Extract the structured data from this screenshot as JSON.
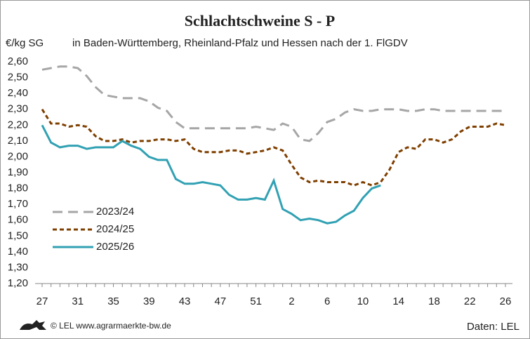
{
  "chart_data": {
    "type": "line",
    "title": "Schlachtschweine S - P",
    "subtitle": "in Baden-Württemberg, Rheinland-Pfalz und Hessen nach der 1. FlGDV",
    "y_label": "€/kg SG",
    "source_left": "© LEL www.agrarmaerkte-bw.de",
    "source_right": "Daten: LEL",
    "categories": [
      "27",
      null,
      null,
      null,
      "31",
      null,
      null,
      null,
      "35",
      null,
      null,
      null,
      "39",
      null,
      null,
      null,
      "43",
      null,
      null,
      null,
      "47",
      null,
      null,
      null,
      "51",
      null,
      null,
      null,
      "2",
      null,
      null,
      null,
      "6",
      null,
      null,
      null,
      "10",
      null,
      null,
      null,
      "14",
      null,
      null,
      null,
      "18",
      null,
      null,
      null,
      "22",
      null,
      null,
      null,
      "26"
    ],
    "ylim": [
      1.2,
      2.6
    ],
    "yticks": [
      {
        "value": 1.2,
        "label": "1,20"
      },
      {
        "value": 1.3,
        "label": "1,30"
      },
      {
        "value": 1.4,
        "label": "1,40"
      },
      {
        "value": 1.5,
        "label": "1,50"
      },
      {
        "value": 1.6,
        "label": "1,60"
      },
      {
        "value": 1.7,
        "label": "1,70"
      },
      {
        "value": 1.8,
        "label": "1,80"
      },
      {
        "value": 1.9,
        "label": "1,90"
      },
      {
        "value": 2.0,
        "label": "2,00"
      },
      {
        "value": 2.1,
        "label": "2,10"
      },
      {
        "value": 2.2,
        "label": "2,20"
      },
      {
        "value": 2.3,
        "label": "2,30"
      },
      {
        "value": 2.4,
        "label": "2,40"
      },
      {
        "value": 2.5,
        "label": "2,50"
      },
      {
        "value": 2.6,
        "label": "2,60"
      }
    ],
    "grid": false,
    "legend": "left",
    "series": [
      {
        "name": "2023/24",
        "color": "#a6a6a6",
        "dash": "dashed",
        "values": [
          2.55,
          2.56,
          2.57,
          2.57,
          2.56,
          2.51,
          2.44,
          2.39,
          2.38,
          2.37,
          2.37,
          2.37,
          2.35,
          2.31,
          2.29,
          2.22,
          2.18,
          2.18,
          2.18,
          2.18,
          2.18,
          2.18,
          2.18,
          2.18,
          2.19,
          2.18,
          2.17,
          2.21,
          2.19,
          2.11,
          2.1,
          2.15,
          2.22,
          2.24,
          2.28,
          2.3,
          2.29,
          2.29,
          2.3,
          2.3,
          2.3,
          2.29,
          2.29,
          2.3,
          2.3,
          2.29,
          2.29,
          2.29,
          2.29,
          2.29,
          2.29,
          2.29,
          2.29
        ]
      },
      {
        "name": "2024/25",
        "color": "#7f3f00",
        "dash": "dotted",
        "values": [
          2.3,
          2.21,
          2.21,
          2.19,
          2.2,
          2.19,
          2.13,
          2.1,
          2.1,
          2.11,
          2.09,
          2.1,
          2.1,
          2.11,
          2.11,
          2.1,
          2.11,
          2.05,
          2.03,
          2.03,
          2.03,
          2.04,
          2.04,
          2.02,
          2.03,
          2.04,
          2.06,
          2.04,
          1.95,
          1.87,
          1.84,
          1.85,
          1.84,
          1.84,
          1.84,
          1.82,
          1.84,
          1.82,
          1.84,
          1.92,
          2.03,
          2.06,
          2.05,
          2.11,
          2.11,
          2.09,
          2.11,
          2.16,
          2.19,
          2.19,
          2.19,
          2.21,
          2.2
        ]
      },
      {
        "name": "2025/26",
        "color": "#31a1b3",
        "dash": "solid",
        "values": [
          2.2,
          2.09,
          2.06,
          2.07,
          2.07,
          2.05,
          2.06,
          2.06,
          2.06,
          2.1,
          2.07,
          2.05,
          2.0,
          1.98,
          1.98,
          1.86,
          1.83,
          1.83,
          1.84,
          1.83,
          1.82,
          1.76,
          1.73,
          1.73,
          1.74,
          1.73,
          1.85,
          1.67,
          1.64,
          1.6,
          1.61,
          1.6,
          1.58,
          1.59,
          1.63,
          1.66,
          1.74,
          1.8,
          1.82,
          null,
          null,
          null,
          null,
          null,
          null,
          null,
          null,
          null,
          null,
          null,
          null,
          null,
          null
        ]
      }
    ]
  }
}
